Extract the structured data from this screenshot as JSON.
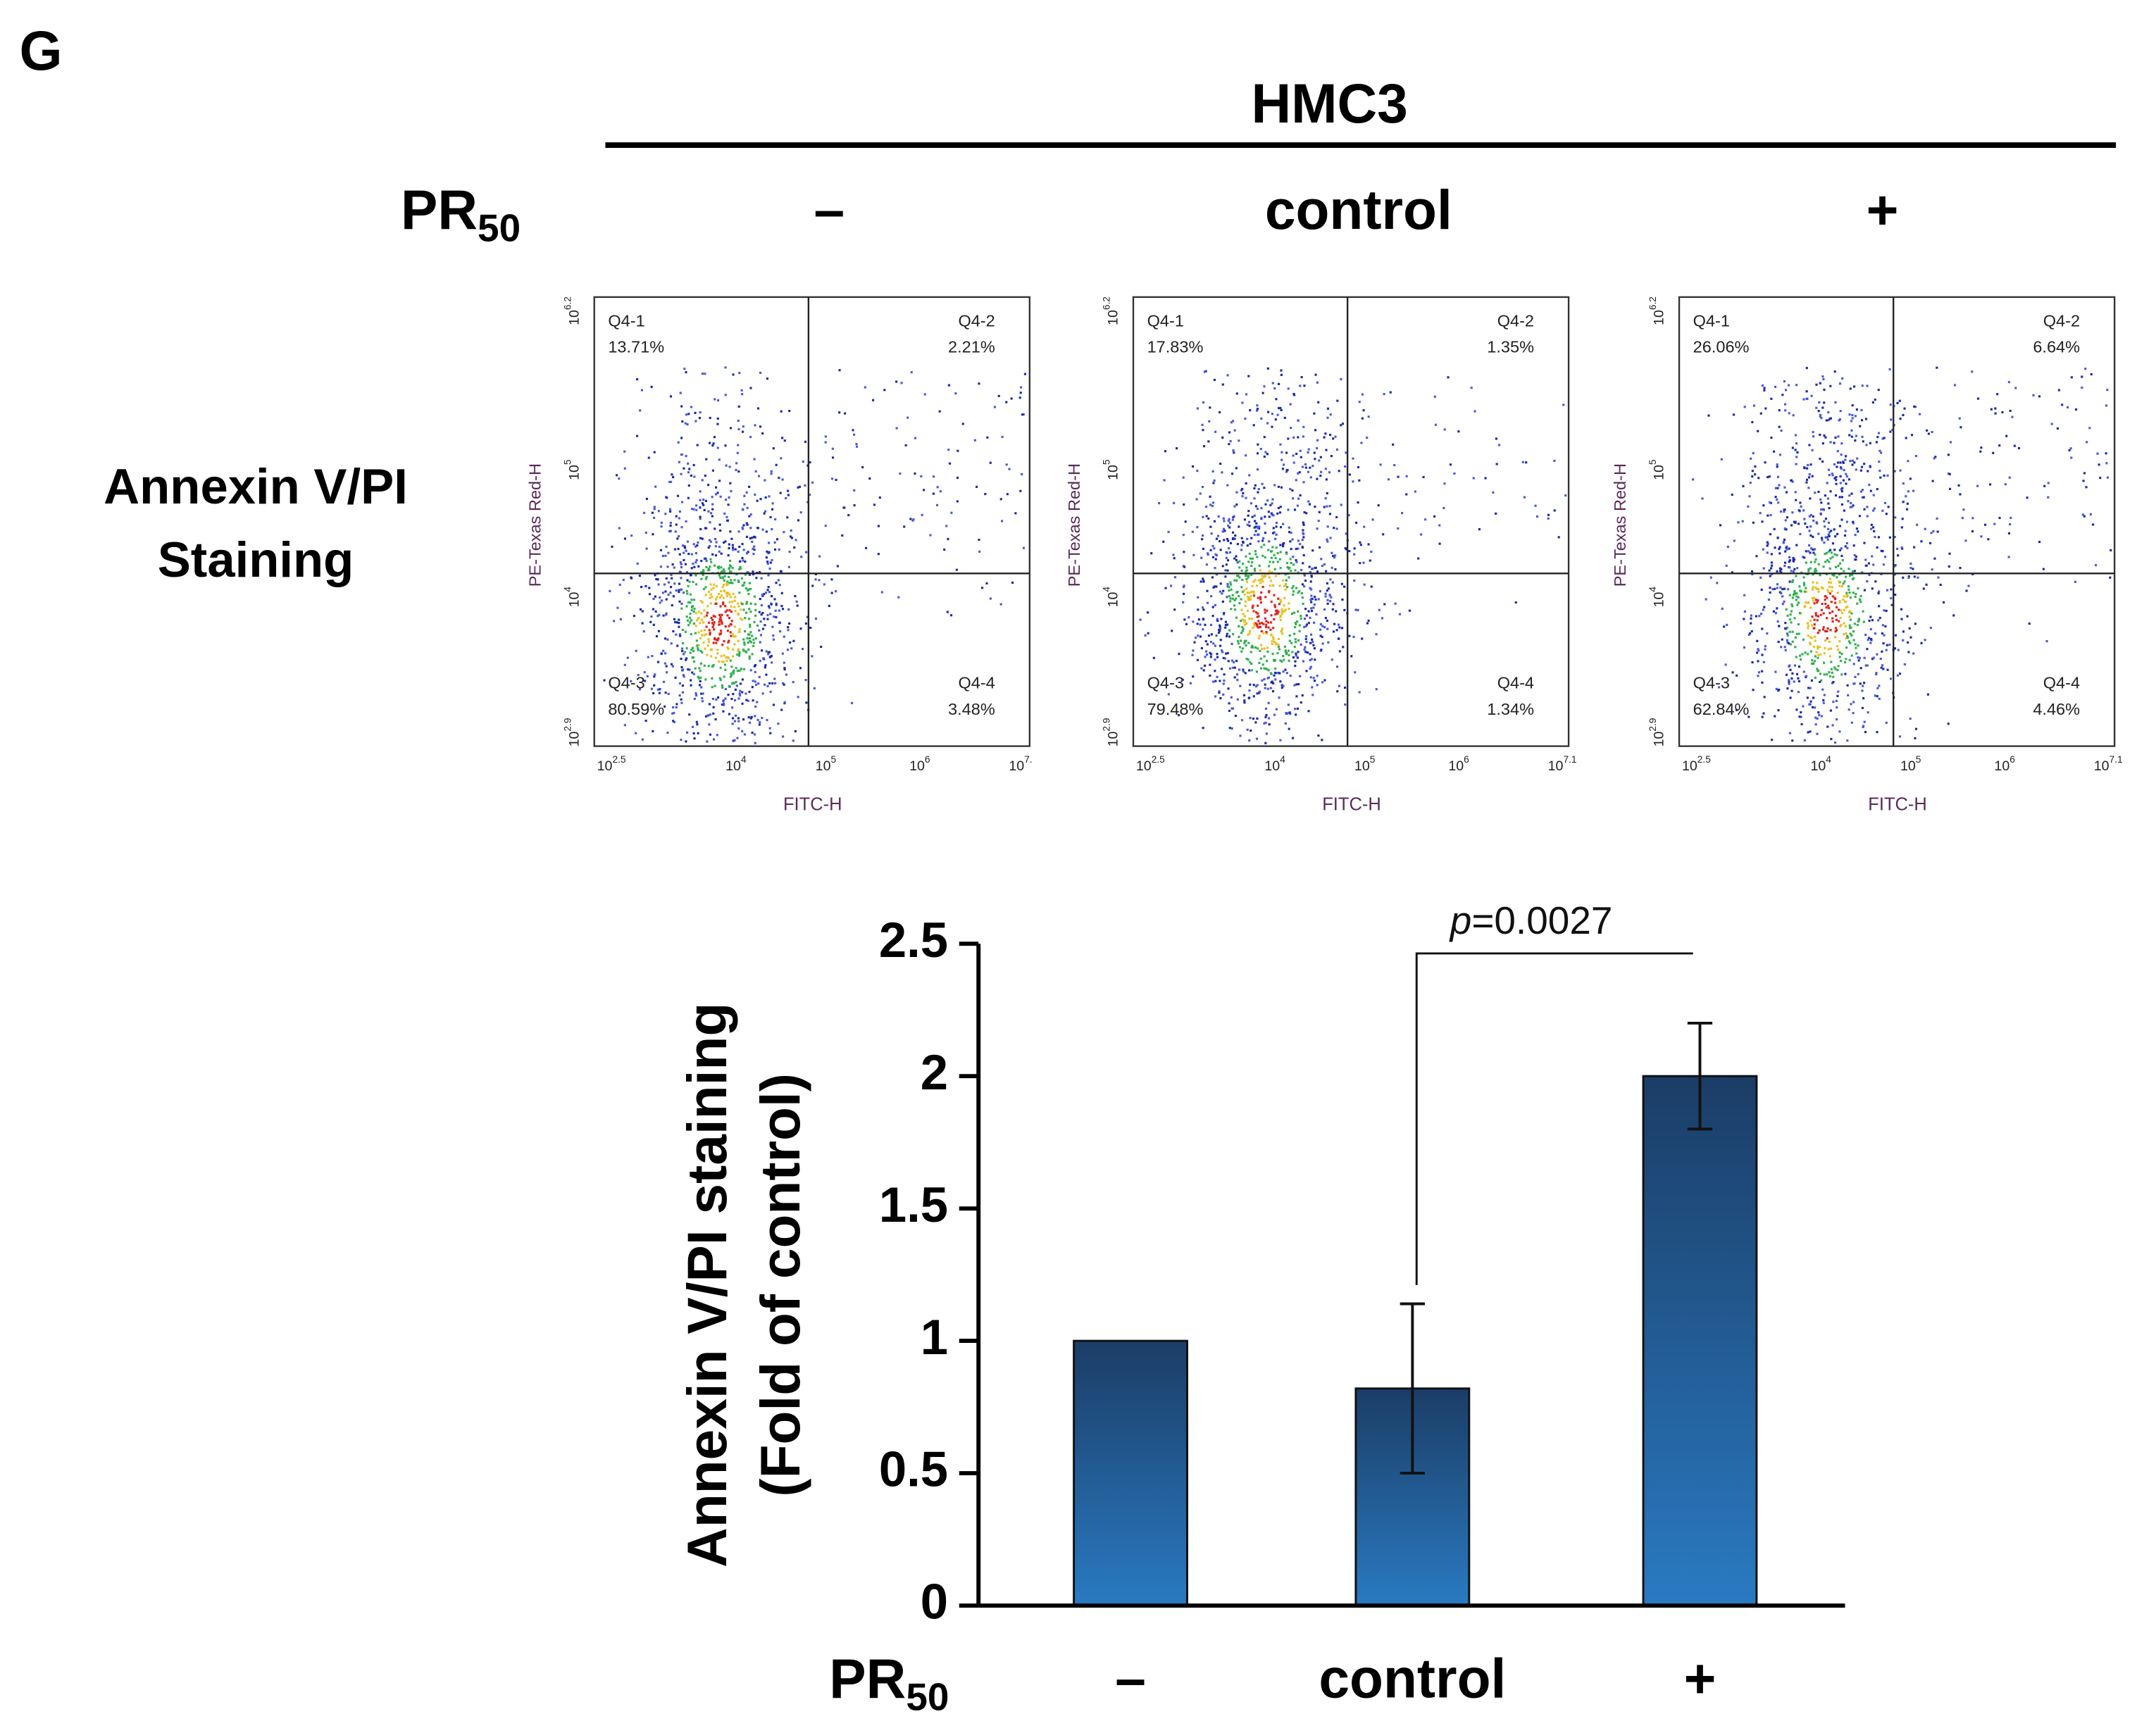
{
  "figure_label": "G",
  "header": {
    "title": "HMC3",
    "row_label": {
      "main": "PR",
      "sub": "50"
    },
    "columns": [
      "–",
      "control",
      "+"
    ]
  },
  "row_label": [
    "Annexin V/PI",
    "Staining"
  ],
  "flow_plots": [
    {
      "x_label": "FITC-H",
      "y_label": "PE-Texas Red-H",
      "x_ticks": [
        {
          "base": "10",
          "exp": "2.5"
        },
        {
          "base": "10",
          "exp": "4"
        },
        {
          "base": "10",
          "exp": "5"
        },
        {
          "base": "10",
          "exp": "6"
        },
        {
          "base": "10",
          "exp": "7."
        }
      ],
      "y_ticks": [
        {
          "base": "10",
          "exp": "2.9"
        },
        {
          "base": "10",
          "exp": "4"
        },
        {
          "base": "10",
          "exp": "5"
        },
        {
          "base": "10",
          "exp": "6.2"
        }
      ],
      "quadrants": [
        {
          "name": "Q4-1",
          "percent": "13.71%"
        },
        {
          "name": "Q4-2",
          "percent": "2.21%"
        },
        {
          "name": "Q4-3",
          "percent": "80.59%"
        },
        {
          "name": "Q4-4",
          "percent": "3.48%"
        }
      ]
    },
    {
      "x_label": "FITC-H",
      "y_label": "PE-Texas Red-H",
      "x_ticks": [
        {
          "base": "10",
          "exp": "2.5"
        },
        {
          "base": "10",
          "exp": "4"
        },
        {
          "base": "10",
          "exp": "5"
        },
        {
          "base": "10",
          "exp": "6"
        },
        {
          "base": "10",
          "exp": "7.1"
        }
      ],
      "y_ticks": [
        {
          "base": "10",
          "exp": "2.9"
        },
        {
          "base": "10",
          "exp": "4"
        },
        {
          "base": "10",
          "exp": "5"
        },
        {
          "base": "10",
          "exp": "6.2"
        }
      ],
      "quadrants": [
        {
          "name": "Q4-1",
          "percent": "17.83%"
        },
        {
          "name": "Q4-2",
          "percent": "1.35%"
        },
        {
          "name": "Q4-3",
          "percent": "79.48%"
        },
        {
          "name": "Q4-4",
          "percent": "1.34%"
        }
      ]
    },
    {
      "x_label": "FITC-H",
      "y_label": "PE-Texas Red-H",
      "x_ticks": [
        {
          "base": "10",
          "exp": "2.5"
        },
        {
          "base": "10",
          "exp": "4"
        },
        {
          "base": "10",
          "exp": "5"
        },
        {
          "base": "10",
          "exp": "6"
        },
        {
          "base": "10",
          "exp": "7.1"
        }
      ],
      "y_ticks": [
        {
          "base": "10",
          "exp": "2.9"
        },
        {
          "base": "10",
          "exp": "4"
        },
        {
          "base": "10",
          "exp": "5"
        },
        {
          "base": "10",
          "exp": "6.2"
        }
      ],
      "quadrants": [
        {
          "name": "Q4-1",
          "percent": "26.06%"
        },
        {
          "name": "Q4-2",
          "percent": "6.64%"
        },
        {
          "name": "Q4-3",
          "percent": "62.84%"
        },
        {
          "name": "Q4-4",
          "percent": "4.46%"
        }
      ]
    }
  ],
  "chart_data": {
    "type": "bar",
    "y_label": [
      "Annexin V/PI staining",
      "(Fold of control)"
    ],
    "x_label": {
      "main": "PR",
      "sub": "50"
    },
    "categories": [
      "–",
      "control",
      "+"
    ],
    "values": [
      1,
      0.82,
      2
    ],
    "errors": [
      null,
      0.32,
      0.2
    ],
    "ylim": [
      0,
      2.5
    ],
    "yticks": [
      0,
      0.5,
      1,
      1.5,
      2,
      2.5
    ],
    "annotation": {
      "symbol": "p",
      "text": "=0.0027"
    }
  }
}
